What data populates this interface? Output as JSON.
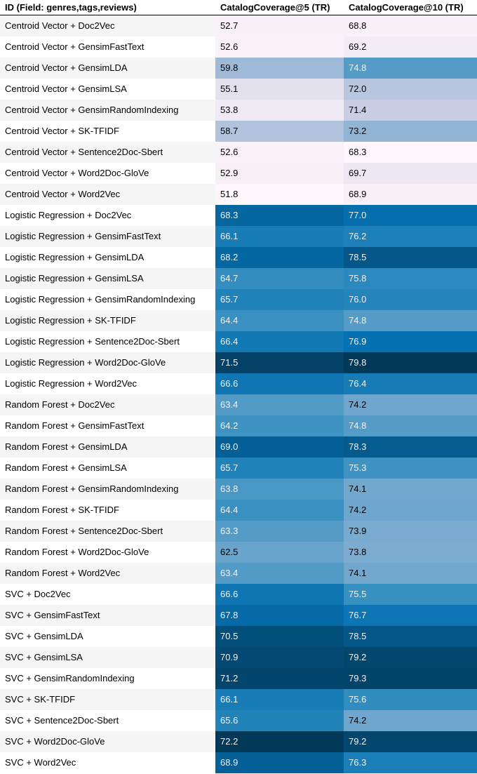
{
  "chart_data": {
    "type": "table",
    "columns": [
      "ID (Field: genres,tags,reviews)",
      "CatalogCoverage@5 (TR)",
      "CatalogCoverage@10 (TR)"
    ],
    "rows": [
      {
        "id": "Centroid Vector + Doc2Vec",
        "cc5": "52.7",
        "cc10": "68.8"
      },
      {
        "id": "Centroid Vector + GensimFastText",
        "cc5": "52.6",
        "cc10": "69.2"
      },
      {
        "id": "Centroid Vector + GensimLDA",
        "cc5": "59.8",
        "cc10": "74.8"
      },
      {
        "id": "Centroid Vector + GensimLSA",
        "cc5": "55.1",
        "cc10": "72.0"
      },
      {
        "id": "Centroid Vector + GensimRandomIndexing",
        "cc5": "53.8",
        "cc10": "71.4"
      },
      {
        "id": "Centroid Vector + SK-TFIDF",
        "cc5": "58.7",
        "cc10": "73.2"
      },
      {
        "id": "Centroid Vector + Sentence2Doc-Sbert",
        "cc5": "52.6",
        "cc10": "68.3"
      },
      {
        "id": "Centroid Vector + Word2Doc-GloVe",
        "cc5": "52.9",
        "cc10": "69.7"
      },
      {
        "id": "Centroid Vector + Word2Vec",
        "cc5": "51.8",
        "cc10": "68.9"
      },
      {
        "id": "Logistic Regression + Doc2Vec",
        "cc5": "68.3",
        "cc10": "77.0"
      },
      {
        "id": "Logistic Regression + GensimFastText",
        "cc5": "66.1",
        "cc10": "76.2"
      },
      {
        "id": "Logistic Regression + GensimLDA",
        "cc5": "68.2",
        "cc10": "78.5"
      },
      {
        "id": "Logistic Regression + GensimLSA",
        "cc5": "64.7",
        "cc10": "75.8"
      },
      {
        "id": "Logistic Regression + GensimRandomIndexing",
        "cc5": "65.7",
        "cc10": "76.0"
      },
      {
        "id": "Logistic Regression + SK-TFIDF",
        "cc5": "64.4",
        "cc10": "74.8"
      },
      {
        "id": "Logistic Regression + Sentence2Doc-Sbert",
        "cc5": "66.4",
        "cc10": "76.9"
      },
      {
        "id": "Logistic Regression + Word2Doc-GloVe",
        "cc5": "71.5",
        "cc10": "79.8"
      },
      {
        "id": "Logistic Regression + Word2Vec",
        "cc5": "66.6",
        "cc10": "76.4"
      },
      {
        "id": "Random Forest + Doc2Vec",
        "cc5": "63.4",
        "cc10": "74.2"
      },
      {
        "id": "Random Forest + GensimFastText",
        "cc5": "64.2",
        "cc10": "74.8"
      },
      {
        "id": "Random Forest + GensimLDA",
        "cc5": "69.0",
        "cc10": "78.3"
      },
      {
        "id": "Random Forest + GensimLSA",
        "cc5": "65.7",
        "cc10": "75.3"
      },
      {
        "id": "Random Forest + GensimRandomIndexing",
        "cc5": "63.8",
        "cc10": "74.1"
      },
      {
        "id": "Random Forest + SK-TFIDF",
        "cc5": "64.4",
        "cc10": "74.2"
      },
      {
        "id": "Random Forest + Sentence2Doc-Sbert",
        "cc5": "63.3",
        "cc10": "73.9"
      },
      {
        "id": "Random Forest + Word2Doc-GloVe",
        "cc5": "62.5",
        "cc10": "73.8"
      },
      {
        "id": "Random Forest + Word2Vec",
        "cc5": "63.4",
        "cc10": "74.1"
      },
      {
        "id": "SVC + Doc2Vec",
        "cc5": "66.6",
        "cc10": "75.5"
      },
      {
        "id": "SVC + GensimFastText",
        "cc5": "67.8",
        "cc10": "76.7"
      },
      {
        "id": "SVC + GensimLDA",
        "cc5": "70.5",
        "cc10": "78.5"
      },
      {
        "id": "SVC + GensimLSA",
        "cc5": "70.9",
        "cc10": "79.2"
      },
      {
        "id": "SVC + GensimRandomIndexing",
        "cc5": "71.2",
        "cc10": "79.3"
      },
      {
        "id": "SVC + SK-TFIDF",
        "cc5": "66.1",
        "cc10": "75.6"
      },
      {
        "id": "SVC + Sentence2Doc-Sbert",
        "cc5": "65.6",
        "cc10": "74.2"
      },
      {
        "id": "SVC + Word2Doc-GloVe",
        "cc5": "72.2",
        "cc10": "79.2"
      },
      {
        "id": "SVC + Word2Vec",
        "cc5": "68.9",
        "cc10": "76.3"
      }
    ],
    "colormap": [
      "#fff7fb",
      "#ece7f2",
      "#d0d1e6",
      "#a6bddb",
      "#74a9cf",
      "#3690c0",
      "#0570b0",
      "#045a8d",
      "#023858"
    ],
    "grid": false
  }
}
